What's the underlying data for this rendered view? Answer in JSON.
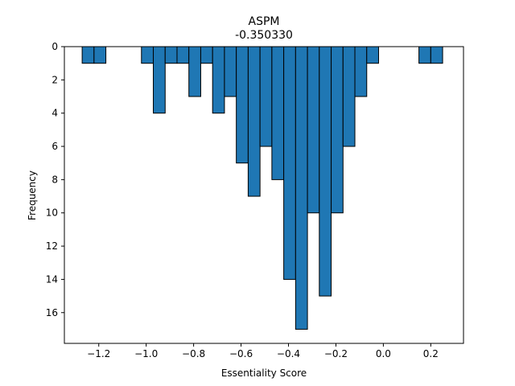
{
  "chart_data": {
    "type": "bar",
    "title": "ASPM",
    "subtitle": "-0.350330",
    "xlabel": "Essentiality Score",
    "ylabel": "Frequency",
    "xlim": [
      -1.345,
      0.338
    ],
    "ylim": [
      17.85,
      0
    ],
    "y_inverted": true,
    "bin_width": 0.05,
    "bins": [
      {
        "x0": -1.27,
        "count": 1
      },
      {
        "x0": -1.22,
        "count": 1
      },
      {
        "x0": -1.02,
        "count": 1
      },
      {
        "x0": -0.97,
        "count": 4
      },
      {
        "x0": -0.92,
        "count": 1
      },
      {
        "x0": -0.87,
        "count": 1
      },
      {
        "x0": -0.82,
        "count": 3
      },
      {
        "x0": -0.77,
        "count": 1
      },
      {
        "x0": -0.72,
        "count": 4
      },
      {
        "x0": -0.67,
        "count": 3
      },
      {
        "x0": -0.62,
        "count": 7
      },
      {
        "x0": -0.57,
        "count": 9
      },
      {
        "x0": -0.52,
        "count": 6
      },
      {
        "x0": -0.47,
        "count": 8
      },
      {
        "x0": -0.42,
        "count": 14
      },
      {
        "x0": -0.37,
        "count": 17
      },
      {
        "x0": -0.32,
        "count": 10
      },
      {
        "x0": -0.27,
        "count": 15
      },
      {
        "x0": -0.22,
        "count": 10
      },
      {
        "x0": -0.17,
        "count": 6
      },
      {
        "x0": -0.12,
        "count": 3
      },
      {
        "x0": -0.07,
        "count": 1
      },
      {
        "x0": 0.15,
        "count": 1
      },
      {
        "x0": 0.2,
        "count": 1
      }
    ],
    "x_ticks": [
      {
        "value": -1.2,
        "label": "−1.2"
      },
      {
        "value": -1.0,
        "label": "−1.0"
      },
      {
        "value": -0.8,
        "label": "−0.8"
      },
      {
        "value": -0.6,
        "label": "−0.6"
      },
      {
        "value": -0.4,
        "label": "−0.4"
      },
      {
        "value": -0.2,
        "label": "−0.2"
      },
      {
        "value": 0.0,
        "label": "0.0"
      },
      {
        "value": 0.2,
        "label": "0.2"
      }
    ],
    "y_ticks": [
      {
        "value": 0,
        "label": "0"
      },
      {
        "value": 2,
        "label": "2"
      },
      {
        "value": 4,
        "label": "4"
      },
      {
        "value": 6,
        "label": "6"
      },
      {
        "value": 8,
        "label": "8"
      },
      {
        "value": 10,
        "label": "10"
      },
      {
        "value": 12,
        "label": "12"
      },
      {
        "value": 14,
        "label": "14"
      },
      {
        "value": 16,
        "label": "16"
      }
    ],
    "bar_color": "#1f77b4",
    "edge_color": "#000000",
    "grid": false,
    "legend": "none"
  }
}
